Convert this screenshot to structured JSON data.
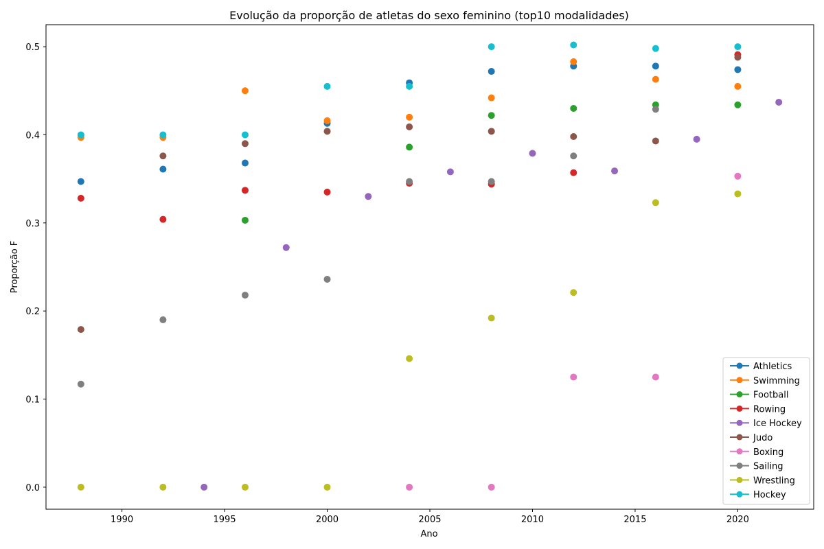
{
  "chart_data": {
    "type": "scatter",
    "title": "Evolução da proporção de atletas do sexo feminino (top10 modalidades)",
    "xlabel": "Ano",
    "ylabel": "Proporção F",
    "xlim": [
      1986.3,
      2023.7
    ],
    "ylim": [
      -0.025,
      0.525
    ],
    "xticks": [
      1990,
      1995,
      2000,
      2005,
      2010,
      2015,
      2020
    ],
    "yticks": [
      0.0,
      0.1,
      0.2,
      0.3,
      0.4,
      0.5
    ],
    "ytick_labels": [
      "0.0",
      "0.1",
      "0.2",
      "0.3",
      "0.4",
      "0.5"
    ],
    "legend_position": "bottom-right",
    "grid": false,
    "series": [
      {
        "name": "Athletics",
        "color": "#1f77b4",
        "points": [
          [
            1988,
            0.347
          ],
          [
            1992,
            0.361
          ],
          [
            1996,
            0.368
          ],
          [
            2000,
            0.413
          ],
          [
            2004,
            0.459
          ],
          [
            2008,
            0.472
          ],
          [
            2012,
            0.478
          ],
          [
            2016,
            0.478
          ],
          [
            2020,
            0.474
          ]
        ]
      },
      {
        "name": "Swimming",
        "color": "#ff7f0e",
        "points": [
          [
            1988,
            0.397
          ],
          [
            1992,
            0.397
          ],
          [
            1996,
            0.45
          ],
          [
            2000,
            0.416
          ],
          [
            2004,
            0.42
          ],
          [
            2008,
            0.442
          ],
          [
            2012,
            0.483
          ],
          [
            2016,
            0.463
          ],
          [
            2020,
            0.455
          ]
        ]
      },
      {
        "name": "Football",
        "color": "#2ca02c",
        "points": [
          [
            1996,
            0.303
          ],
          [
            2004,
            0.386
          ],
          [
            2008,
            0.422
          ],
          [
            2012,
            0.43
          ],
          [
            2016,
            0.434
          ],
          [
            2020,
            0.434
          ]
        ]
      },
      {
        "name": "Rowing",
        "color": "#d62728",
        "points": [
          [
            1988,
            0.328
          ],
          [
            1992,
            0.304
          ],
          [
            1996,
            0.337
          ],
          [
            2000,
            0.335
          ],
          [
            2004,
            0.345
          ],
          [
            2008,
            0.344
          ],
          [
            2012,
            0.357
          ],
          [
            2020,
            0.491
          ]
        ]
      },
      {
        "name": "Ice Hockey",
        "color": "#9467bd",
        "points": [
          [
            1994,
            0.0
          ],
          [
            1998,
            0.272
          ],
          [
            2002,
            0.33
          ],
          [
            2006,
            0.358
          ],
          [
            2010,
            0.379
          ],
          [
            2014,
            0.359
          ],
          [
            2018,
            0.395
          ],
          [
            2022,
            0.437
          ]
        ]
      },
      {
        "name": "Judo",
        "color": "#8c564b",
        "points": [
          [
            1988,
            0.179
          ],
          [
            1992,
            0.376
          ],
          [
            1996,
            0.39
          ],
          [
            2000,
            0.404
          ],
          [
            2004,
            0.409
          ],
          [
            2008,
            0.404
          ],
          [
            2012,
            0.398
          ],
          [
            2016,
            0.393
          ],
          [
            2020,
            0.488
          ]
        ]
      },
      {
        "name": "Boxing",
        "color": "#e377c2",
        "points": [
          [
            2004,
            0.0
          ],
          [
            2008,
            0.0
          ],
          [
            2012,
            0.125
          ],
          [
            2016,
            0.125
          ],
          [
            2020,
            0.353
          ]
        ]
      },
      {
        "name": "Sailing",
        "color": "#7f7f7f",
        "points": [
          [
            1988,
            0.117
          ],
          [
            1992,
            0.19
          ],
          [
            1996,
            0.218
          ],
          [
            2000,
            0.236
          ],
          [
            2004,
            0.347
          ],
          [
            2008,
            0.347
          ],
          [
            2012,
            0.376
          ],
          [
            2016,
            0.429
          ]
        ]
      },
      {
        "name": "Wrestling",
        "color": "#bcbd22",
        "points": [
          [
            1988,
            0.0
          ],
          [
            1992,
            0.0
          ],
          [
            1996,
            0.0
          ],
          [
            2000,
            0.0
          ],
          [
            2004,
            0.146
          ],
          [
            2008,
            0.192
          ],
          [
            2012,
            0.221
          ],
          [
            2016,
            0.323
          ],
          [
            2020,
            0.333
          ]
        ]
      },
      {
        "name": "Hockey",
        "color": "#17becf",
        "points": [
          [
            1988,
            0.4
          ],
          [
            1992,
            0.4
          ],
          [
            1996,
            0.4
          ],
          [
            2000,
            0.455
          ],
          [
            2004,
            0.455
          ],
          [
            2008,
            0.5
          ],
          [
            2012,
            0.502
          ],
          [
            2016,
            0.498
          ],
          [
            2020,
            0.5
          ]
        ]
      }
    ]
  }
}
